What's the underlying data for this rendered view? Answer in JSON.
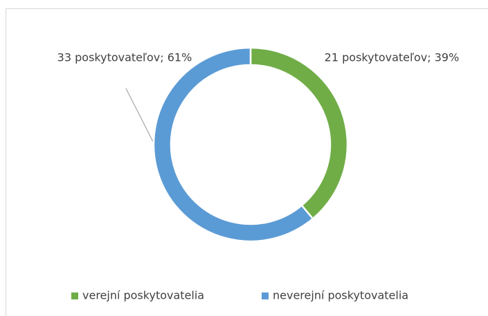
{
  "chart_data": {
    "type": "donut",
    "categories": [
      "verejní poskytovatelia",
      "neverejní poskytovatelia"
    ],
    "values": [
      21,
      33
    ],
    "value_labels": [
      "21 poskytovateľov; 39%",
      "33 poskytovateľov; 61%"
    ],
    "colors": [
      "#70ad47",
      "#5b9bd5"
    ],
    "legend": "bottom"
  }
}
